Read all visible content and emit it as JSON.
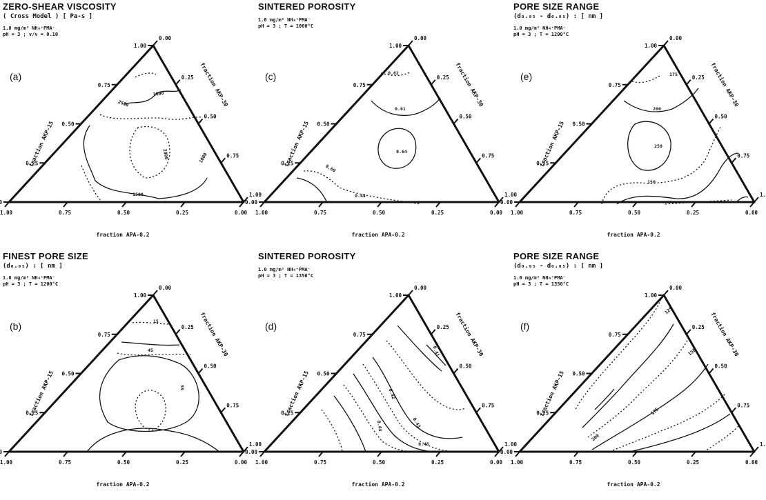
{
  "chart_data": [
    {
      "type": "ternary-contour",
      "panel": "(a)",
      "title": "ZERO-SHEAR VISCOSITY",
      "subtitle": "( Cross Model ) [ Pa-s ]",
      "conditions": [
        "1.0 mg/m² NH₄⁺PMA⁻",
        "pH = 3 ; v/v = 0.10"
      ],
      "axes": {
        "left": "fraction AKP-15",
        "right": "fraction AKP-30",
        "bottom": "fraction APA-0.2"
      },
      "left_ticks": [
        "0.00",
        "0.25",
        "0.50",
        "0.75",
        "1.00"
      ],
      "right_ticks": [
        "0.00",
        "0.25",
        "0.50",
        "0.75",
        "1.00"
      ],
      "bottom_ticks": [
        "1.00",
        "0.75",
        "0.50",
        "0.25",
        "0.00"
      ],
      "contour_labels": [
        "3000",
        "2500",
        "2000",
        "1500",
        "1000"
      ]
    },
    {
      "type": "ternary-contour",
      "panel": "(b)",
      "title": "FINEST PORE SIZE",
      "subtitle": "(d₀.₀₅) : [ nm ]",
      "conditions": [
        "1.0 mg/m² NH₄⁺PMA⁻",
        "pH = 3 ; T = 1200°C"
      ],
      "axes": {
        "left": "fraction AKP-15",
        "right": "fraction AKP-30",
        "bottom": "fraction APA-0.2"
      },
      "left_ticks": [
        "0.00",
        "0.25",
        "0.50",
        "0.75",
        "1.00"
      ],
      "right_ticks": [
        "0.00",
        "0.25",
        "0.50",
        "0.75",
        "1.00"
      ],
      "bottom_ticks": [
        "1.00",
        "0.75",
        "0.50",
        "0.25",
        "0.00"
      ],
      "contour_labels": [
        "15",
        "45",
        "55"
      ]
    },
    {
      "type": "ternary-contour",
      "panel": "(c)",
      "title": "SINTERED POROSITY",
      "conditions": [
        "1.0 mg/m² NH₄⁺PMA⁻",
        "pH = 3 ; T = 1000°C"
      ],
      "axes": {
        "left": "fraction AKP-15",
        "right": "fraction AKP-30",
        "bottom": "fraction APA-0.2"
      },
      "left_ticks": [
        "0.00",
        "0.25",
        "0.50",
        "0.75",
        "1.00"
      ],
      "right_ticks": [
        "0.00",
        "0.25",
        "0.50",
        "0.75",
        "1.00"
      ],
      "bottom_ticks": [
        "1.00",
        "0.75",
        "0.50",
        "0.25",
        "0.00"
      ],
      "contour_labels": [
        "0.62",
        "0.61",
        "0.64",
        "0.60",
        "0.44"
      ]
    },
    {
      "type": "ternary-contour",
      "panel": "(d)",
      "title": "SINTERED POROSITY",
      "conditions": [
        "1.0 mg/m² NH₄⁺PMA⁻",
        "pH = 3 ; T = 1350°C"
      ],
      "axes": {
        "left": "fraction AKP-15",
        "right": "fraction AKP-30",
        "bottom": "fraction APA-0.2"
      },
      "left_ticks": [
        "0.00",
        "0.25",
        "0.50",
        "0.75",
        "1.00"
      ],
      "right_ticks": [
        "0.00",
        "0.25",
        "0.50",
        "0.75",
        "1.00"
      ],
      "bottom_ticks": [
        "1.00",
        "0.75",
        "0.50",
        "0.25",
        "0.00"
      ],
      "contour_labels": [
        "0.41",
        "0.42",
        "0.43",
        "0.44",
        "0.45"
      ]
    },
    {
      "type": "ternary-contour",
      "panel": "(e)",
      "title": "PORE SIZE RANGE",
      "subtitle": "(d₀.₉₅ - d₀.₀₅) : [ nm ]",
      "conditions": [
        "1.0 mg/m² NH₄⁺PMA⁻",
        "pH = 3 ; T = 1200°C"
      ],
      "axes": {
        "left": "fraction AKP-15",
        "right": "fraction AKP-30",
        "bottom": "fraction APA-0.2"
      },
      "left_ticks": [
        "0.00",
        "0.25",
        "0.50",
        "0.75",
        "1.00"
      ],
      "right_ticks": [
        "0.00",
        "0.25",
        "0.50",
        "0.75",
        "1.00"
      ],
      "bottom_ticks": [
        "1.00",
        "0.75",
        "0.50",
        "0.25",
        "0.00"
      ],
      "contour_labels": [
        "175",
        "200",
        "250",
        "150"
      ]
    },
    {
      "type": "ternary-contour",
      "panel": "(f)",
      "title": "PORE SIZE RANGE",
      "subtitle": "(d₀.₉₅ - d₀.₀₅) : [ nm ]",
      "conditions": [
        "1.0 mg/m² NH₄⁺PMA⁻",
        "pH = 3 ; T = 1350°C"
      ],
      "axes": {
        "left": "fraction AKP-15",
        "right": "fraction AKP-30",
        "bottom": "fraction APA-0.2"
      },
      "left_ticks": [
        "0.00",
        "0.25",
        "0.50",
        "0.75",
        "1.00"
      ],
      "right_ticks": [
        "0.00",
        "0.25",
        "0.50",
        "0.75",
        "1.00"
      ],
      "bottom_ticks": [
        "1.00",
        "0.75",
        "0.50",
        "0.25",
        "0.00"
      ],
      "contour_labels": [
        "125",
        "150",
        "175",
        "200"
      ]
    }
  ]
}
